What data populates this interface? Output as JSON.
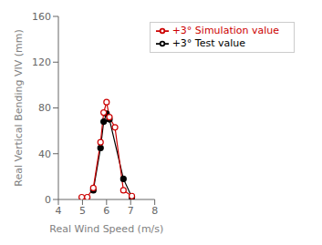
{
  "chart_data": {
    "type": "line",
    "xlabel": "Real Wind Speed  (m/s)",
    "ylabel": "Real Vertical Bending VIV (mm)",
    "xlim": [
      4,
      8
    ],
    "ylim": [
      0,
      160
    ],
    "xticks": [
      4,
      5,
      6,
      7,
      8
    ],
    "yticks": [
      0,
      40,
      80,
      120,
      160
    ],
    "grid": false,
    "legend": "upper right",
    "series": [
      {
        "name": "+3° Test value",
        "color": "#000000",
        "marker": "circle",
        "x": [
          5.45,
          5.75,
          5.88,
          6.0,
          6.12,
          6.7,
          7.05
        ],
        "values": [
          8,
          45,
          68,
          75,
          70,
          18,
          2
        ]
      },
      {
        "name": "+3° Simulation value",
        "color": "#cc0000",
        "marker": "open_circle",
        "x": [
          4.97,
          5.2,
          5.45,
          5.75,
          5.88,
          6.0,
          6.12,
          6.35,
          6.7,
          7.05
        ],
        "values": [
          2,
          2,
          10,
          50,
          76,
          85,
          72,
          63,
          8,
          3
        ]
      }
    ]
  }
}
